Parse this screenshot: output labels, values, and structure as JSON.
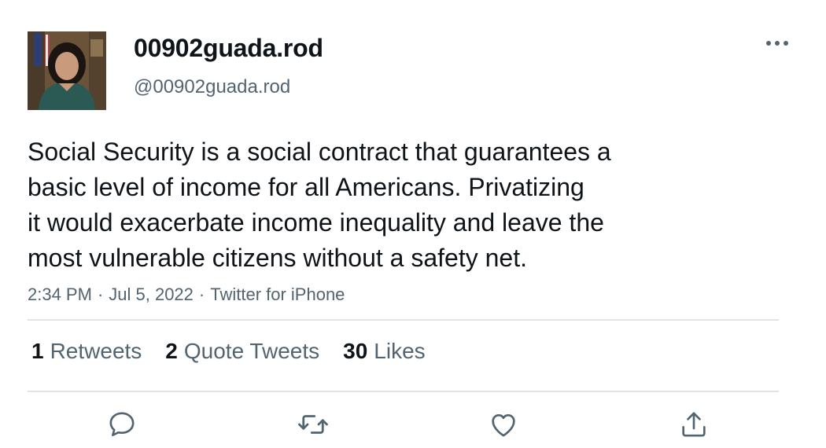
{
  "author": {
    "display_name": "00902guada.rod",
    "handle": "@00902guada.rod",
    "avatar_icon": "profile-photo"
  },
  "header": {
    "more_icon": "more-horizontal-icon"
  },
  "tweet": {
    "text": "Social Security is a social contract that guarantees a\nbasic level of income for all Americans. Privatizing\nit would exacerbate income inequality and leave the\nmost vulnerable citizens without a safety net.",
    "time": "2:34 PM",
    "separator": "·",
    "date": "Jul 5, 2022",
    "source": "Twitter for iPhone"
  },
  "stats": {
    "retweets_count": "1",
    "retweets_label": "Retweets",
    "quotes_count": "2",
    "quotes_label": "Quote Tweets",
    "likes_count": "30",
    "likes_label": "Likes"
  },
  "actions": {
    "reply_icon": "reply-icon",
    "retweet_icon": "retweet-icon",
    "like_icon": "like-icon",
    "share_icon": "share-icon"
  },
  "colors": {
    "text_primary": "#0f1419",
    "text_secondary": "#536471",
    "divider": "#e1e4e7",
    "icon": "#536471"
  }
}
